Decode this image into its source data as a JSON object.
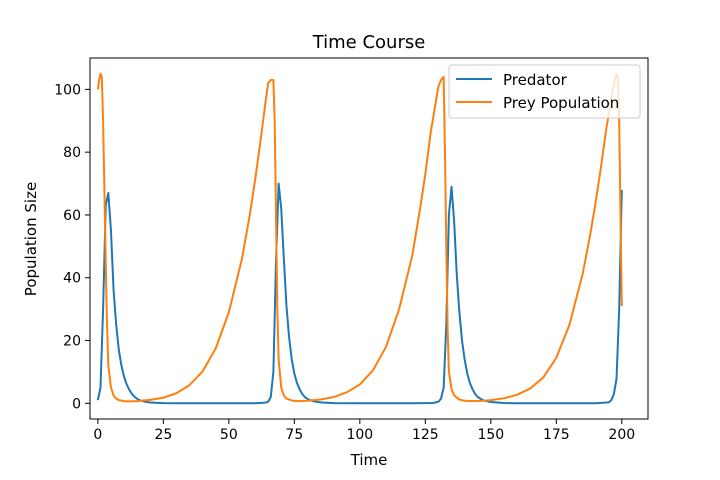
{
  "chart_data": {
    "type": "line",
    "title": "Time Course",
    "xlabel": "Time",
    "ylabel": "Population Size",
    "xlim": [
      -3,
      210
    ],
    "ylim": [
      -5,
      110
    ],
    "xticks": [
      0,
      25,
      50,
      75,
      100,
      125,
      150,
      175,
      200
    ],
    "yticks": [
      0,
      20,
      40,
      60,
      80,
      100
    ],
    "grid": false,
    "legend_position": "top-right",
    "series": [
      {
        "name": "Predator",
        "color": "#1f77b4",
        "points": [
          [
            0,
            1
          ],
          [
            1,
            5
          ],
          [
            2,
            30
          ],
          [
            3,
            63
          ],
          [
            4,
            67
          ],
          [
            5,
            55
          ],
          [
            6,
            36
          ],
          [
            7,
            25
          ],
          [
            8,
            17
          ],
          [
            9,
            12
          ],
          [
            10,
            8.5
          ],
          [
            11,
            6
          ],
          [
            12,
            4.3
          ],
          [
            13,
            3
          ],
          [
            14,
            2.1
          ],
          [
            15,
            1.4
          ],
          [
            16,
            1
          ],
          [
            18,
            0.5
          ],
          [
            20,
            0.25
          ],
          [
            25,
            0.05
          ],
          [
            30,
            0
          ],
          [
            40,
            0
          ],
          [
            50,
            0
          ],
          [
            60,
            0
          ],
          [
            64,
            0.2
          ],
          [
            65,
            0.5
          ],
          [
            66,
            2
          ],
          [
            67,
            10
          ],
          [
            68,
            45
          ],
          [
            69,
            70
          ],
          [
            70,
            62
          ],
          [
            71,
            46
          ],
          [
            72,
            31
          ],
          [
            73,
            21
          ],
          [
            74,
            14
          ],
          [
            75,
            9.5
          ],
          [
            76,
            6.5
          ],
          [
            77,
            4.5
          ],
          [
            78,
            3
          ],
          [
            79,
            2
          ],
          [
            80,
            1.4
          ],
          [
            82,
            0.7
          ],
          [
            85,
            0.3
          ],
          [
            90,
            0.05
          ],
          [
            100,
            0
          ],
          [
            110,
            0
          ],
          [
            120,
            0
          ],
          [
            128,
            0.1
          ],
          [
            130,
            0.5
          ],
          [
            131,
            1.5
          ],
          [
            132,
            5
          ],
          [
            133,
            25
          ],
          [
            134,
            60
          ],
          [
            135,
            69
          ],
          [
            136,
            58
          ],
          [
            137,
            41
          ],
          [
            138,
            29
          ],
          [
            139,
            20
          ],
          [
            140,
            14
          ],
          [
            141,
            9.5
          ],
          [
            142,
            6.5
          ],
          [
            143,
            4.5
          ],
          [
            144,
            3
          ],
          [
            145,
            2
          ],
          [
            147,
            1
          ],
          [
            150,
            0.4
          ],
          [
            155,
            0.1
          ],
          [
            160,
            0
          ],
          [
            170,
            0
          ],
          [
            180,
            0
          ],
          [
            190,
            0
          ],
          [
            195,
            0.3
          ],
          [
            196,
            1
          ],
          [
            197,
            3
          ],
          [
            198,
            8
          ],
          [
            199,
            30
          ],
          [
            200,
            68
          ]
        ]
      },
      {
        "name": "Prey Population",
        "color": "#ff7f0e",
        "points": [
          [
            0,
            100
          ],
          [
            0.5,
            103
          ],
          [
            1,
            105
          ],
          [
            1.5,
            104
          ],
          [
            2,
            90
          ],
          [
            2.5,
            68
          ],
          [
            3,
            45
          ],
          [
            3.5,
            25
          ],
          [
            4,
            12
          ],
          [
            5,
            5
          ],
          [
            6,
            2.5
          ],
          [
            7,
            1.5
          ],
          [
            8,
            1
          ],
          [
            10,
            0.7
          ],
          [
            12,
            0.6
          ],
          [
            15,
            0.7
          ],
          [
            20,
            1.1
          ],
          [
            25,
            1.8
          ],
          [
            30,
            3.2
          ],
          [
            35,
            5.8
          ],
          [
            40,
            10.2
          ],
          [
            45,
            17.5
          ],
          [
            50,
            29
          ],
          [
            55,
            46
          ],
          [
            58,
            60
          ],
          [
            60,
            71
          ],
          [
            62,
            83
          ],
          [
            64,
            96
          ],
          [
            65,
            102
          ],
          [
            66,
            103
          ],
          [
            67,
            103
          ],
          [
            67.5,
            90
          ],
          [
            68,
            60
          ],
          [
            68.5,
            30
          ],
          [
            69,
            14
          ],
          [
            70,
            5
          ],
          [
            71,
            2.5
          ],
          [
            72,
            1.5
          ],
          [
            74,
            0.9
          ],
          [
            76,
            0.7
          ],
          [
            80,
            0.8
          ],
          [
            85,
            1.2
          ],
          [
            90,
            2
          ],
          [
            95,
            3.5
          ],
          [
            100,
            6
          ],
          [
            105,
            10.5
          ],
          [
            110,
            18
          ],
          [
            115,
            30
          ],
          [
            120,
            47
          ],
          [
            123,
            62
          ],
          [
            125,
            73
          ],
          [
            127,
            86
          ],
          [
            129,
            96
          ],
          [
            130,
            101
          ],
          [
            131,
            103
          ],
          [
            132,
            104
          ],
          [
            132.5,
            80
          ],
          [
            133,
            50
          ],
          [
            133.5,
            24
          ],
          [
            134,
            10
          ],
          [
            135,
            4.5
          ],
          [
            136,
            2.5
          ],
          [
            138,
            1.2
          ],
          [
            140,
            0.8
          ],
          [
            143,
            0.7
          ],
          [
            147,
            0.8
          ],
          [
            150,
            1
          ],
          [
            155,
            1.6
          ],
          [
            160,
            2.7
          ],
          [
            165,
            4.7
          ],
          [
            170,
            8.2
          ],
          [
            175,
            14.5
          ],
          [
            180,
            25
          ],
          [
            185,
            41
          ],
          [
            188,
            54
          ],
          [
            190,
            64
          ],
          [
            192,
            75
          ],
          [
            194,
            87
          ],
          [
            196,
            97
          ],
          [
            197,
            102
          ],
          [
            198,
            105
          ],
          [
            198.5,
            104
          ],
          [
            199,
            90
          ],
          [
            199.5,
            60
          ],
          [
            200,
            31
          ]
        ]
      }
    ]
  }
}
